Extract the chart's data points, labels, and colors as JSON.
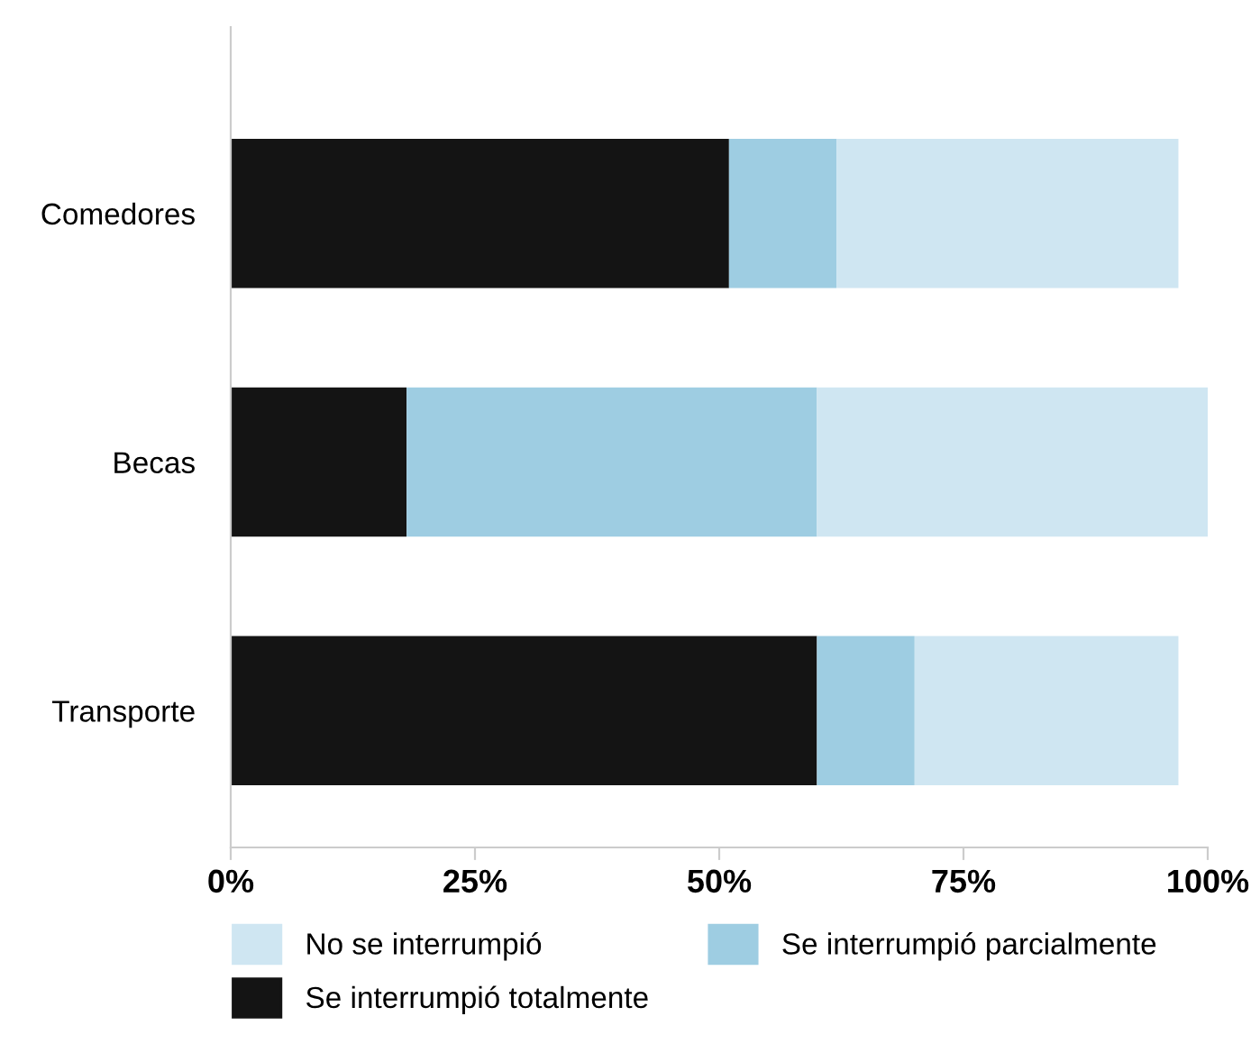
{
  "chart_data": {
    "type": "bar",
    "orientation": "horizontal",
    "stacked": true,
    "categories": [
      "Comedores",
      "Becas",
      "Transporte"
    ],
    "series": [
      {
        "name": "Se interrumpió totalmente",
        "color": "#141414",
        "values": [
          51,
          18,
          60
        ]
      },
      {
        "name": "Se interrumpió parcialmente",
        "color": "#9ecde2",
        "values": [
          11,
          42,
          10
        ]
      },
      {
        "name": "No se interrumpió",
        "color": "#cfe6f2",
        "values": [
          35,
          40,
          27
        ]
      }
    ],
    "xlim": [
      0,
      100
    ],
    "xticks": [
      {
        "value": 0,
        "label": "0%"
      },
      {
        "value": 25,
        "label": "25%"
      },
      {
        "value": 50,
        "label": "50%"
      },
      {
        "value": 75,
        "label": "75%"
      },
      {
        "value": 100,
        "label": "100%"
      }
    ],
    "grid": false,
    "legend": "bottom"
  }
}
